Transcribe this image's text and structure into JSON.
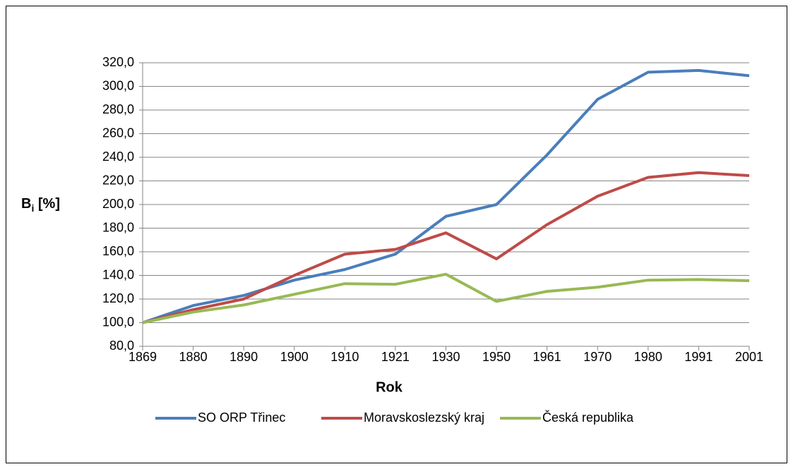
{
  "chart_data": {
    "type": "line",
    "x_label": "Rok",
    "y_label": [
      "B",
      "i",
      " [%]"
    ],
    "categories": [
      "1869",
      "1880",
      "1890",
      "1900",
      "1910",
      "1921",
      "1930",
      "1950",
      "1961",
      "1970",
      "1980",
      "1991",
      "2001"
    ],
    "series": [
      {
        "name": "SO ORP Třinec",
        "color": "#4a7ebb",
        "values": [
          100,
          114.5,
          123,
          136,
          145,
          158,
          190,
          200,
          242,
          289,
          312,
          313.5,
          309
        ]
      },
      {
        "name": "Moravskoslezský kraj",
        "color": "#be4b48",
        "values": [
          100,
          111,
          120,
          140,
          158,
          162,
          176,
          154,
          183,
          207,
          223,
          227,
          224.5
        ]
      },
      {
        "name": "Česká republika",
        "color": "#98b954",
        "values": [
          100,
          109,
          115,
          124,
          133,
          132.5,
          141,
          118,
          126.5,
          130,
          136,
          136.5,
          135.5
        ]
      }
    ],
    "ylim": [
      80,
      320
    ],
    "yticks": [
      {
        "value": 80,
        "label": "80,0"
      },
      {
        "value": 100,
        "label": "100,0"
      },
      {
        "value": 120,
        "label": "120,0"
      },
      {
        "value": 140,
        "label": "140,0"
      },
      {
        "value": 160,
        "label": "160,0"
      },
      {
        "value": 180,
        "label": "180,0"
      },
      {
        "value": 200,
        "label": "200,0"
      },
      {
        "value": 220,
        "label": "220,0"
      },
      {
        "value": 240,
        "label": "240,0"
      },
      {
        "value": 260,
        "label": "260,0"
      },
      {
        "value": 280,
        "label": "280,0"
      },
      {
        "value": 300,
        "label": "300,0"
      },
      {
        "value": 320,
        "label": "320,0"
      }
    ],
    "grid": true,
    "legend": "bottom"
  }
}
